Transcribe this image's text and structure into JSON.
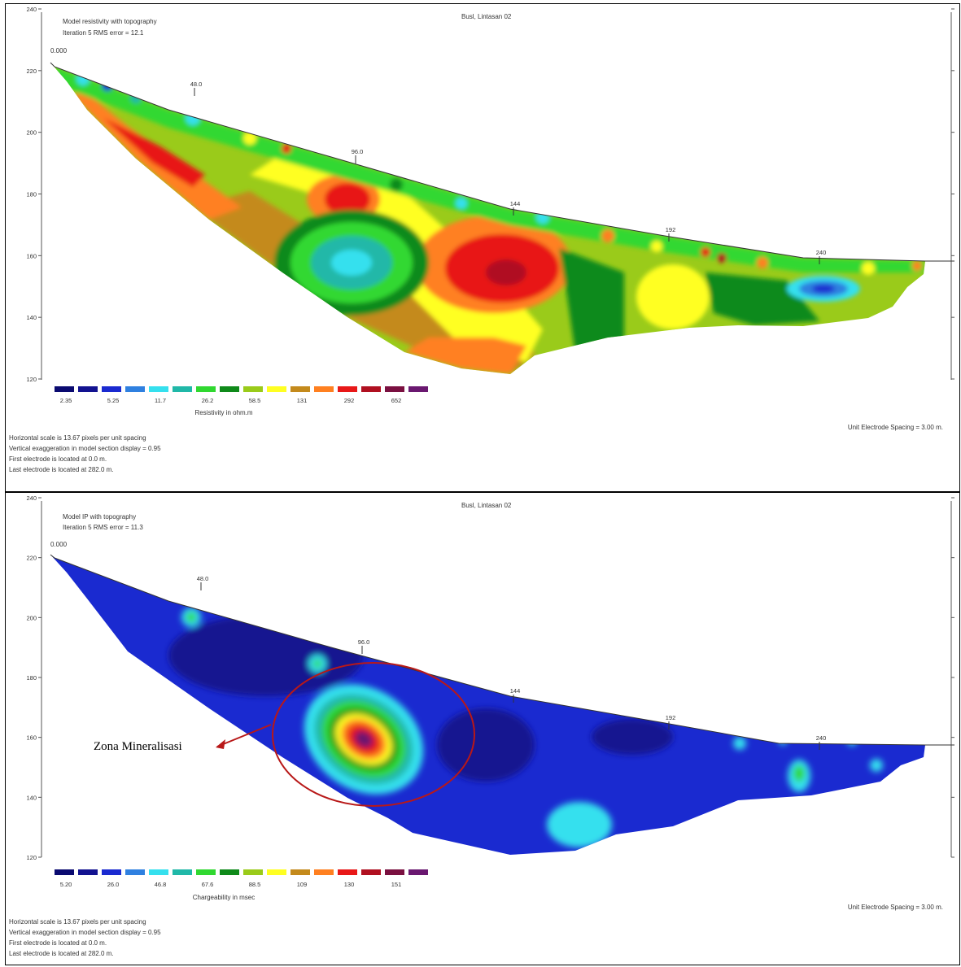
{
  "chart_data": [
    {
      "type": "heatmap",
      "title": "Busl, Lintasan 02",
      "model_title": "Model resistivity with topography",
      "iteration_text": "Iteration 5 RMS error = 12.1",
      "start_label": "0.000",
      "x_marks": [
        "48.0",
        "96.0",
        "144",
        "192",
        "240"
      ],
      "y_ticks": [
        240,
        220,
        200,
        180,
        160,
        140,
        120
      ],
      "ylim": [
        120,
        240
      ],
      "legend": {
        "colors": [
          "#0a0a70",
          "#121290",
          "#1a2ad0",
          "#2f80e0",
          "#35e0ee",
          "#20b8a8",
          "#30d830",
          "#0f8a1a",
          "#9acb1a",
          "#ffff22",
          "#c48a1c",
          "#ff8020",
          "#e81818",
          "#b01020",
          "#7a1040",
          "#6a1870"
        ],
        "labels": [
          "2.35",
          "5.25",
          "11.7",
          "26.2",
          "58.5",
          "131",
          "292",
          "652"
        ],
        "title": "Resistivity in ohm.m"
      },
      "notes": [
        "Horizontal scale is 13.67 pixels per unit spacing",
        "Vertical exaggeration in model section display = 0.95",
        "First electrode is located at 0.0 m.",
        "Last electrode is located at 282.0 m."
      ],
      "spacing_text": "Unit Electrode Spacing = 3.00 m."
    },
    {
      "type": "heatmap",
      "title": "Busl, Lintasan 02",
      "model_title": "Model IP with topography",
      "iteration_text": "Iteration 5 RMS error = 11.3",
      "start_label": "0.000",
      "x_marks": [
        "48.0",
        "96.0",
        "144",
        "192",
        "240"
      ],
      "y_ticks": [
        240,
        220,
        200,
        180,
        160,
        140,
        120
      ],
      "ylim": [
        120,
        240
      ],
      "legend": {
        "colors": [
          "#0a0a70",
          "#121290",
          "#1a2ad0",
          "#2f80e0",
          "#35e0ee",
          "#20b8a8",
          "#30d830",
          "#0f8a1a",
          "#9acb1a",
          "#ffff22",
          "#c48a1c",
          "#ff8020",
          "#e81818",
          "#b01020",
          "#7a1040",
          "#6a1870"
        ],
        "labels": [
          "5.20",
          "26.0",
          "46.8",
          "67.6",
          "88.5",
          "109",
          "130",
          "151"
        ],
        "title": "Chargeability in msec"
      },
      "notes": [
        "Horizontal scale is 13.67 pixels per unit spacing",
        "Vertical exaggeration in model section display = 0.95",
        "First electrode is located at 0.0 m.",
        "Last electrode is located at 282.0 m."
      ],
      "spacing_text": "Unit Electrode Spacing = 3.00 m.",
      "annotation": "Zona Mineralisasi"
    }
  ]
}
